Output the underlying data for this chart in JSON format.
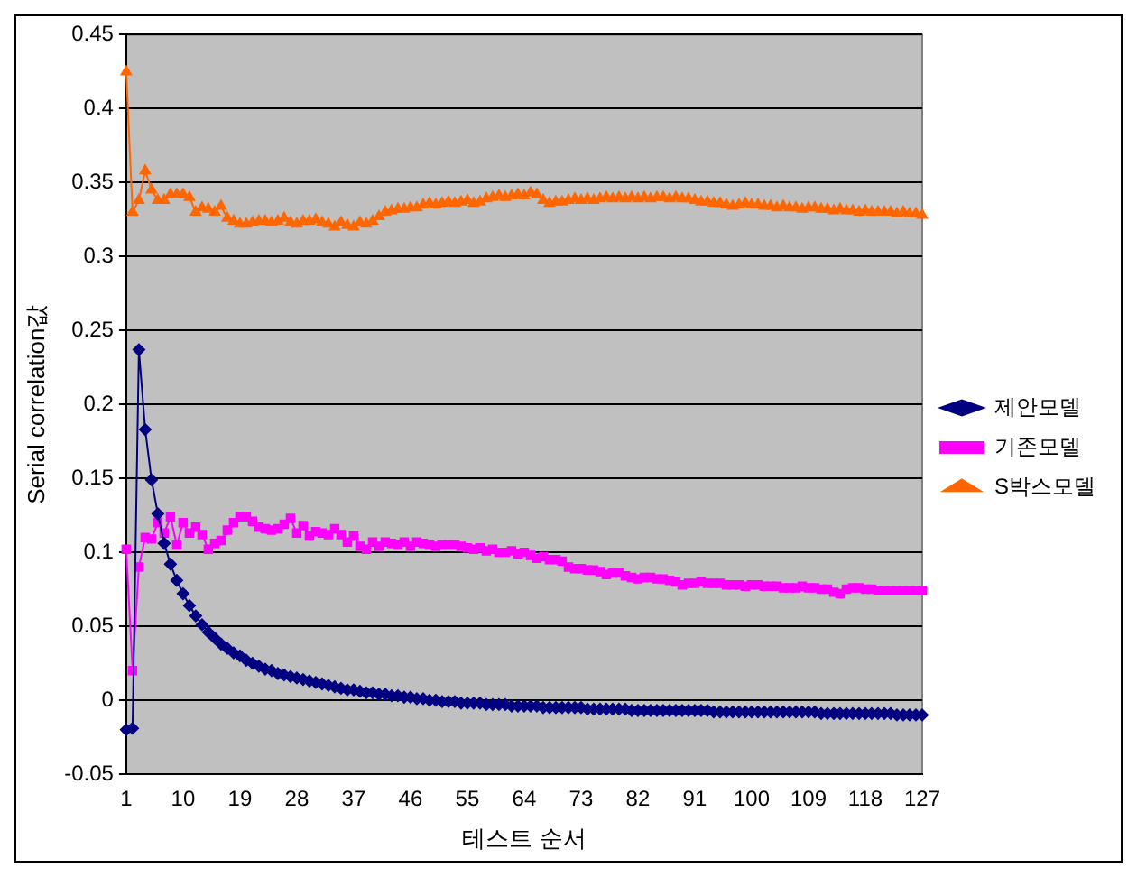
{
  "chart_data": {
    "type": "line",
    "xlabel": "테스트 순서",
    "ylabel": "Serial correlation값",
    "categories": [
      "1",
      null,
      null,
      null,
      null,
      null,
      null,
      null,
      null,
      "10",
      null,
      null,
      null,
      null,
      null,
      null,
      null,
      null,
      "19",
      null,
      null,
      null,
      null,
      null,
      null,
      null,
      null,
      "28",
      null,
      null,
      null,
      null,
      null,
      null,
      null,
      null,
      "37",
      null,
      null,
      null,
      null,
      null,
      null,
      null,
      null,
      "46",
      null,
      null,
      null,
      null,
      null,
      null,
      null,
      null,
      "55",
      null,
      null,
      null,
      null,
      null,
      null,
      null,
      null,
      "64",
      null,
      null,
      null,
      null,
      null,
      null,
      null,
      null,
      "73",
      null,
      null,
      null,
      null,
      null,
      null,
      null,
      null,
      "82",
      null,
      null,
      null,
      null,
      null,
      null,
      null,
      null,
      "91",
      null,
      null,
      null,
      null,
      null,
      null,
      null,
      null,
      "100",
      null,
      null,
      null,
      null,
      null,
      null,
      null,
      null,
      "109",
      null,
      null,
      null,
      null,
      null,
      null,
      null,
      null,
      "118",
      null,
      null,
      null,
      null,
      null,
      null,
      null,
      null,
      "127"
    ],
    "ylim": [
      -0.05,
      0.45
    ],
    "yticks": [
      -0.05,
      0,
      0.05,
      0.1,
      0.15,
      0.2,
      0.25,
      0.3,
      0.35,
      0.4,
      0.45
    ],
    "grid": "y",
    "legend": "right",
    "line_style": "solid",
    "series": [
      {
        "name": "제안모델",
        "color": "#000080",
        "marker": "diamond",
        "values": [
          -0.02,
          -0.019,
          0.237,
          0.183,
          0.149,
          0.126,
          0.106,
          0.092,
          0.081,
          0.072,
          0.064,
          0.057,
          0.051,
          0.046,
          0.042,
          0.038,
          0.035,
          0.032,
          0.03,
          0.027,
          0.025,
          0.023,
          0.021,
          0.02,
          0.018,
          0.017,
          0.016,
          0.015,
          0.014,
          0.013,
          0.012,
          0.011,
          0.01,
          0.009,
          0.008,
          0.007,
          0.007,
          0.006,
          0.005,
          0.005,
          0.004,
          0.004,
          0.003,
          0.003,
          0.002,
          0.002,
          0.001,
          0.001,
          0,
          0,
          -0.001,
          -0.001,
          -0.001,
          -0.002,
          -0.002,
          -0.002,
          -0.002,
          -0.003,
          -0.003,
          -0.003,
          -0.003,
          -0.004,
          -0.004,
          -0.004,
          -0.004,
          -0.004,
          -0.005,
          -0.005,
          -0.005,
          -0.005,
          -0.005,
          -0.005,
          -0.005,
          -0.006,
          -0.006,
          -0.006,
          -0.006,
          -0.006,
          -0.006,
          -0.006,
          -0.007,
          -0.007,
          -0.007,
          -0.007,
          -0.007,
          -0.007,
          -0.007,
          -0.007,
          -0.007,
          -0.007,
          -0.007,
          -0.007,
          -0.007,
          -0.008,
          -0.008,
          -0.008,
          -0.008,
          -0.008,
          -0.008,
          -0.008,
          -0.008,
          -0.008,
          -0.008,
          -0.008,
          -0.008,
          -0.008,
          -0.008,
          -0.008,
          -0.008,
          -0.008,
          -0.009,
          -0.009,
          -0.009,
          -0.009,
          -0.009,
          -0.009,
          -0.009,
          -0.009,
          -0.009,
          -0.009,
          -0.009,
          -0.009,
          -0.01,
          -0.01,
          -0.01,
          -0.01,
          -0.01
        ]
      },
      {
        "name": "기존모델",
        "color": "#ff00ff",
        "marker": "square",
        "values": [
          0.102,
          0.02,
          0.09,
          0.11,
          0.109,
          0.12,
          0.113,
          0.124,
          0.105,
          0.12,
          0.113,
          0.117,
          0.112,
          0.102,
          0.106,
          0.108,
          0.115,
          0.12,
          0.124,
          0.124,
          0.121,
          0.117,
          0.116,
          0.115,
          0.116,
          0.119,
          0.123,
          0.113,
          0.118,
          0.111,
          0.114,
          0.113,
          0.112,
          0.116,
          0.112,
          0.107,
          0.111,
          0.104,
          0.102,
          0.107,
          0.104,
          0.107,
          0.106,
          0.105,
          0.107,
          0.104,
          0.107,
          0.106,
          0.105,
          0.104,
          0.105,
          0.105,
          0.105,
          0.104,
          0.103,
          0.102,
          0.103,
          0.101,
          0.102,
          0.1,
          0.1,
          0.101,
          0.099,
          0.1,
          0.098,
          0.096,
          0.097,
          0.095,
          0.095,
          0.094,
          0.09,
          0.089,
          0.089,
          0.088,
          0.088,
          0.087,
          0.085,
          0.086,
          0.086,
          0.084,
          0.083,
          0.082,
          0.083,
          0.083,
          0.082,
          0.082,
          0.081,
          0.08,
          0.078,
          0.079,
          0.079,
          0.08,
          0.079,
          0.079,
          0.079,
          0.078,
          0.078,
          0.078,
          0.077,
          0.078,
          0.078,
          0.077,
          0.077,
          0.077,
          0.076,
          0.076,
          0.076,
          0.077,
          0.076,
          0.076,
          0.075,
          0.075,
          0.073,
          0.072,
          0.075,
          0.076,
          0.076,
          0.075,
          0.075,
          0.074,
          0.074,
          0.074,
          0.074,
          0.074,
          0.074,
          0.074,
          0.074
        ]
      },
      {
        "name": "S박스모델",
        "color": "#ff6600",
        "marker": "triangle",
        "values": [
          0.425,
          0.33,
          0.338,
          0.358,
          0.345,
          0.338,
          0.338,
          0.342,
          0.342,
          0.342,
          0.34,
          0.33,
          0.333,
          0.332,
          0.33,
          0.334,
          0.326,
          0.324,
          0.322,
          0.322,
          0.323,
          0.324,
          0.324,
          0.323,
          0.324,
          0.326,
          0.323,
          0.322,
          0.324,
          0.324,
          0.325,
          0.323,
          0.322,
          0.32,
          0.323,
          0.321,
          0.32,
          0.323,
          0.322,
          0.324,
          0.327,
          0.33,
          0.331,
          0.332,
          0.332,
          0.333,
          0.333,
          0.335,
          0.336,
          0.335,
          0.336,
          0.337,
          0.336,
          0.337,
          0.338,
          0.336,
          0.337,
          0.339,
          0.34,
          0.341,
          0.34,
          0.341,
          0.342,
          0.341,
          0.343,
          0.342,
          0.338,
          0.336,
          0.337,
          0.337,
          0.338,
          0.339,
          0.338,
          0.339,
          0.338,
          0.339,
          0.34,
          0.339,
          0.34,
          0.339,
          0.34,
          0.339,
          0.34,
          0.339,
          0.34,
          0.34,
          0.339,
          0.34,
          0.339,
          0.339,
          0.338,
          0.337,
          0.337,
          0.336,
          0.336,
          0.335,
          0.334,
          0.335,
          0.336,
          0.335,
          0.335,
          0.334,
          0.334,
          0.333,
          0.334,
          0.333,
          0.333,
          0.332,
          0.333,
          0.333,
          0.332,
          0.332,
          0.331,
          0.332,
          0.331,
          0.331,
          0.33,
          0.331,
          0.33,
          0.33,
          0.33,
          0.33,
          0.329,
          0.33,
          0.329,
          0.329,
          0.328
        ]
      }
    ]
  }
}
